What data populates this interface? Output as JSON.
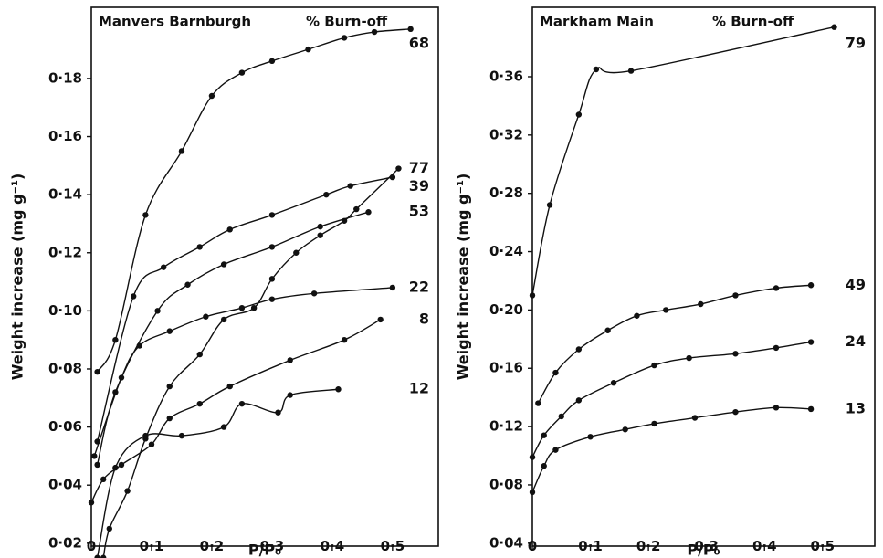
{
  "chart_data": [
    {
      "type": "line",
      "markers": true,
      "title": "Manvers Barnburgh",
      "legend_title": "% Burn-off",
      "x_label": "P/P₀",
      "y_label": "Weight increase (mg g⁻¹)",
      "color": "#111111",
      "xlim": [
        0,
        0.576
      ],
      "ylim": [
        0.019,
        0.2045
      ],
      "xticks": [
        0,
        {
          "value": 0.1,
          "label": "0·1"
        },
        {
          "value": 0.2,
          "label": "0·2"
        },
        {
          "value": 0.3,
          "label": "0·3"
        },
        {
          "value": 0.4,
          "label": "0·4"
        },
        {
          "value": 0.5,
          "label": "0·5"
        }
      ],
      "yticks": [
        {
          "value": 0.02,
          "label": "0·02"
        },
        {
          "value": 0.04,
          "label": "0·04"
        },
        {
          "value": 0.06,
          "label": "0·06"
        },
        {
          "value": 0.08,
          "label": "0·08"
        },
        {
          "value": 0.1,
          "label": "0·10"
        },
        {
          "value": 0.12,
          "label": "0·12"
        },
        {
          "value": 0.14,
          "label": "0·14"
        },
        {
          "value": 0.16,
          "label": "0·16"
        },
        {
          "value": 0.18,
          "label": "0·18"
        }
      ],
      "series": [
        {
          "name": "68",
          "color": "#111111",
          "x": [
            0.01,
            0.04,
            0.09,
            0.15,
            0.2,
            0.25,
            0.3,
            0.36,
            0.42,
            0.47,
            0.53
          ],
          "values": [
            0.079,
            0.09,
            0.133,
            0.155,
            0.174,
            0.182,
            0.186,
            0.19,
            0.194,
            0.196,
            0.197
          ]
        },
        {
          "name": "77",
          "color": "#111111",
          "x": [
            0.02,
            0.03,
            0.06,
            0.09,
            0.13,
            0.18,
            0.22,
            0.27,
            0.3,
            0.34,
            0.38,
            0.42,
            0.44,
            0.51
          ],
          "values": [
            0.015,
            0.025,
            0.038,
            0.056,
            0.074,
            0.085,
            0.097,
            0.101,
            0.111,
            0.12,
            0.126,
            0.131,
            0.135,
            0.149
          ]
        },
        {
          "name": "39",
          "color": "#111111",
          "x": [
            0.01,
            0.07,
            0.12,
            0.18,
            0.23,
            0.3,
            0.39,
            0.43,
            0.5
          ],
          "values": [
            0.055,
            0.105,
            0.115,
            0.122,
            0.128,
            0.133,
            0.14,
            0.143,
            0.146
          ]
        },
        {
          "name": "53",
          "color": "#111111",
          "x": [
            0.01,
            0.04,
            0.11,
            0.16,
            0.22,
            0.3,
            0.38,
            0.46
          ],
          "values": [
            0.047,
            0.072,
            0.1,
            0.109,
            0.116,
            0.122,
            0.129,
            0.134
          ]
        },
        {
          "name": "22",
          "color": "#111111",
          "x": [
            0.005,
            0.05,
            0.08,
            0.13,
            0.19,
            0.25,
            0.3,
            0.37,
            0.5
          ],
          "values": [
            0.05,
            0.077,
            0.088,
            0.093,
            0.098,
            0.101,
            0.104,
            0.106,
            0.108
          ]
        },
        {
          "name": "8",
          "color": "#111111",
          "x": [
            0,
            0.02,
            0.05,
            0.1,
            0.13,
            0.18,
            0.23,
            0.33,
            0.42,
            0.48
          ],
          "values": [
            0.034,
            0.042,
            0.047,
            0.054,
            0.063,
            0.068,
            0.074,
            0.083,
            0.09,
            0.097
          ]
        },
        {
          "name": "12",
          "color": "#111111",
          "x": [
            0.01,
            0.04,
            0.09,
            0.15,
            0.22,
            0.25,
            0.31,
            0.33,
            0.41
          ],
          "values": [
            0.015,
            0.046,
            0.057,
            0.057,
            0.06,
            0.068,
            0.065,
            0.071,
            0.073
          ]
        }
      ]
    },
    {
      "type": "line",
      "markers": true,
      "title": "Markham Main",
      "legend_title": "% Burn-off",
      "x_label": "P/P₀",
      "y_label": "Weight increase (mg g⁻¹)",
      "color": "#111111",
      "xlim": [
        0,
        0.59
      ],
      "ylim": [
        0.038,
        0.4076
      ],
      "xticks": [
        0,
        {
          "value": 0.1,
          "label": "0·1"
        },
        {
          "value": 0.2,
          "label": "0·2"
        },
        {
          "value": 0.3,
          "label": "0·3"
        },
        {
          "value": 0.4,
          "label": "0·4"
        },
        {
          "value": 0.5,
          "label": "0·5"
        }
      ],
      "yticks": [
        {
          "value": 0.04,
          "label": "0·04"
        },
        {
          "value": 0.08,
          "label": "0·08"
        },
        {
          "value": 0.12,
          "label": "0·12"
        },
        {
          "value": 0.16,
          "label": "0·16"
        },
        {
          "value": 0.2,
          "label": "0·20"
        },
        {
          "value": 0.24,
          "label": "0·24"
        },
        {
          "value": 0.28,
          "label": "0·28"
        },
        {
          "value": 0.32,
          "label": "0·32"
        },
        {
          "value": 0.36,
          "label": "0·36"
        }
      ],
      "series": [
        {
          "name": "79",
          "color": "#111111",
          "x": [
            0,
            0.03,
            0.08,
            0.11,
            0.17,
            0.52
          ],
          "values": [
            0.21,
            0.272,
            0.334,
            0.365,
            0.364,
            0.394
          ]
        },
        {
          "name": "49",
          "color": "#111111",
          "x": [
            0.01,
            0.04,
            0.08,
            0.13,
            0.18,
            0.23,
            0.29,
            0.35,
            0.42,
            0.48
          ],
          "values": [
            0.136,
            0.157,
            0.173,
            0.186,
            0.196,
            0.2,
            0.204,
            0.21,
            0.215,
            0.217
          ]
        },
        {
          "name": "24",
          "color": "#111111",
          "x": [
            0,
            0.02,
            0.05,
            0.08,
            0.14,
            0.21,
            0.27,
            0.35,
            0.42,
            0.48
          ],
          "values": [
            0.099,
            0.114,
            0.127,
            0.138,
            0.15,
            0.162,
            0.167,
            0.17,
            0.174,
            0.178
          ]
        },
        {
          "name": "13",
          "color": "#111111",
          "x": [
            0,
            0.02,
            0.04,
            0.1,
            0.16,
            0.21,
            0.28,
            0.35,
            0.42,
            0.48
          ],
          "values": [
            0.075,
            0.093,
            0.104,
            0.113,
            0.118,
            0.122,
            0.126,
            0.13,
            0.133,
            0.132
          ]
        }
      ]
    }
  ]
}
